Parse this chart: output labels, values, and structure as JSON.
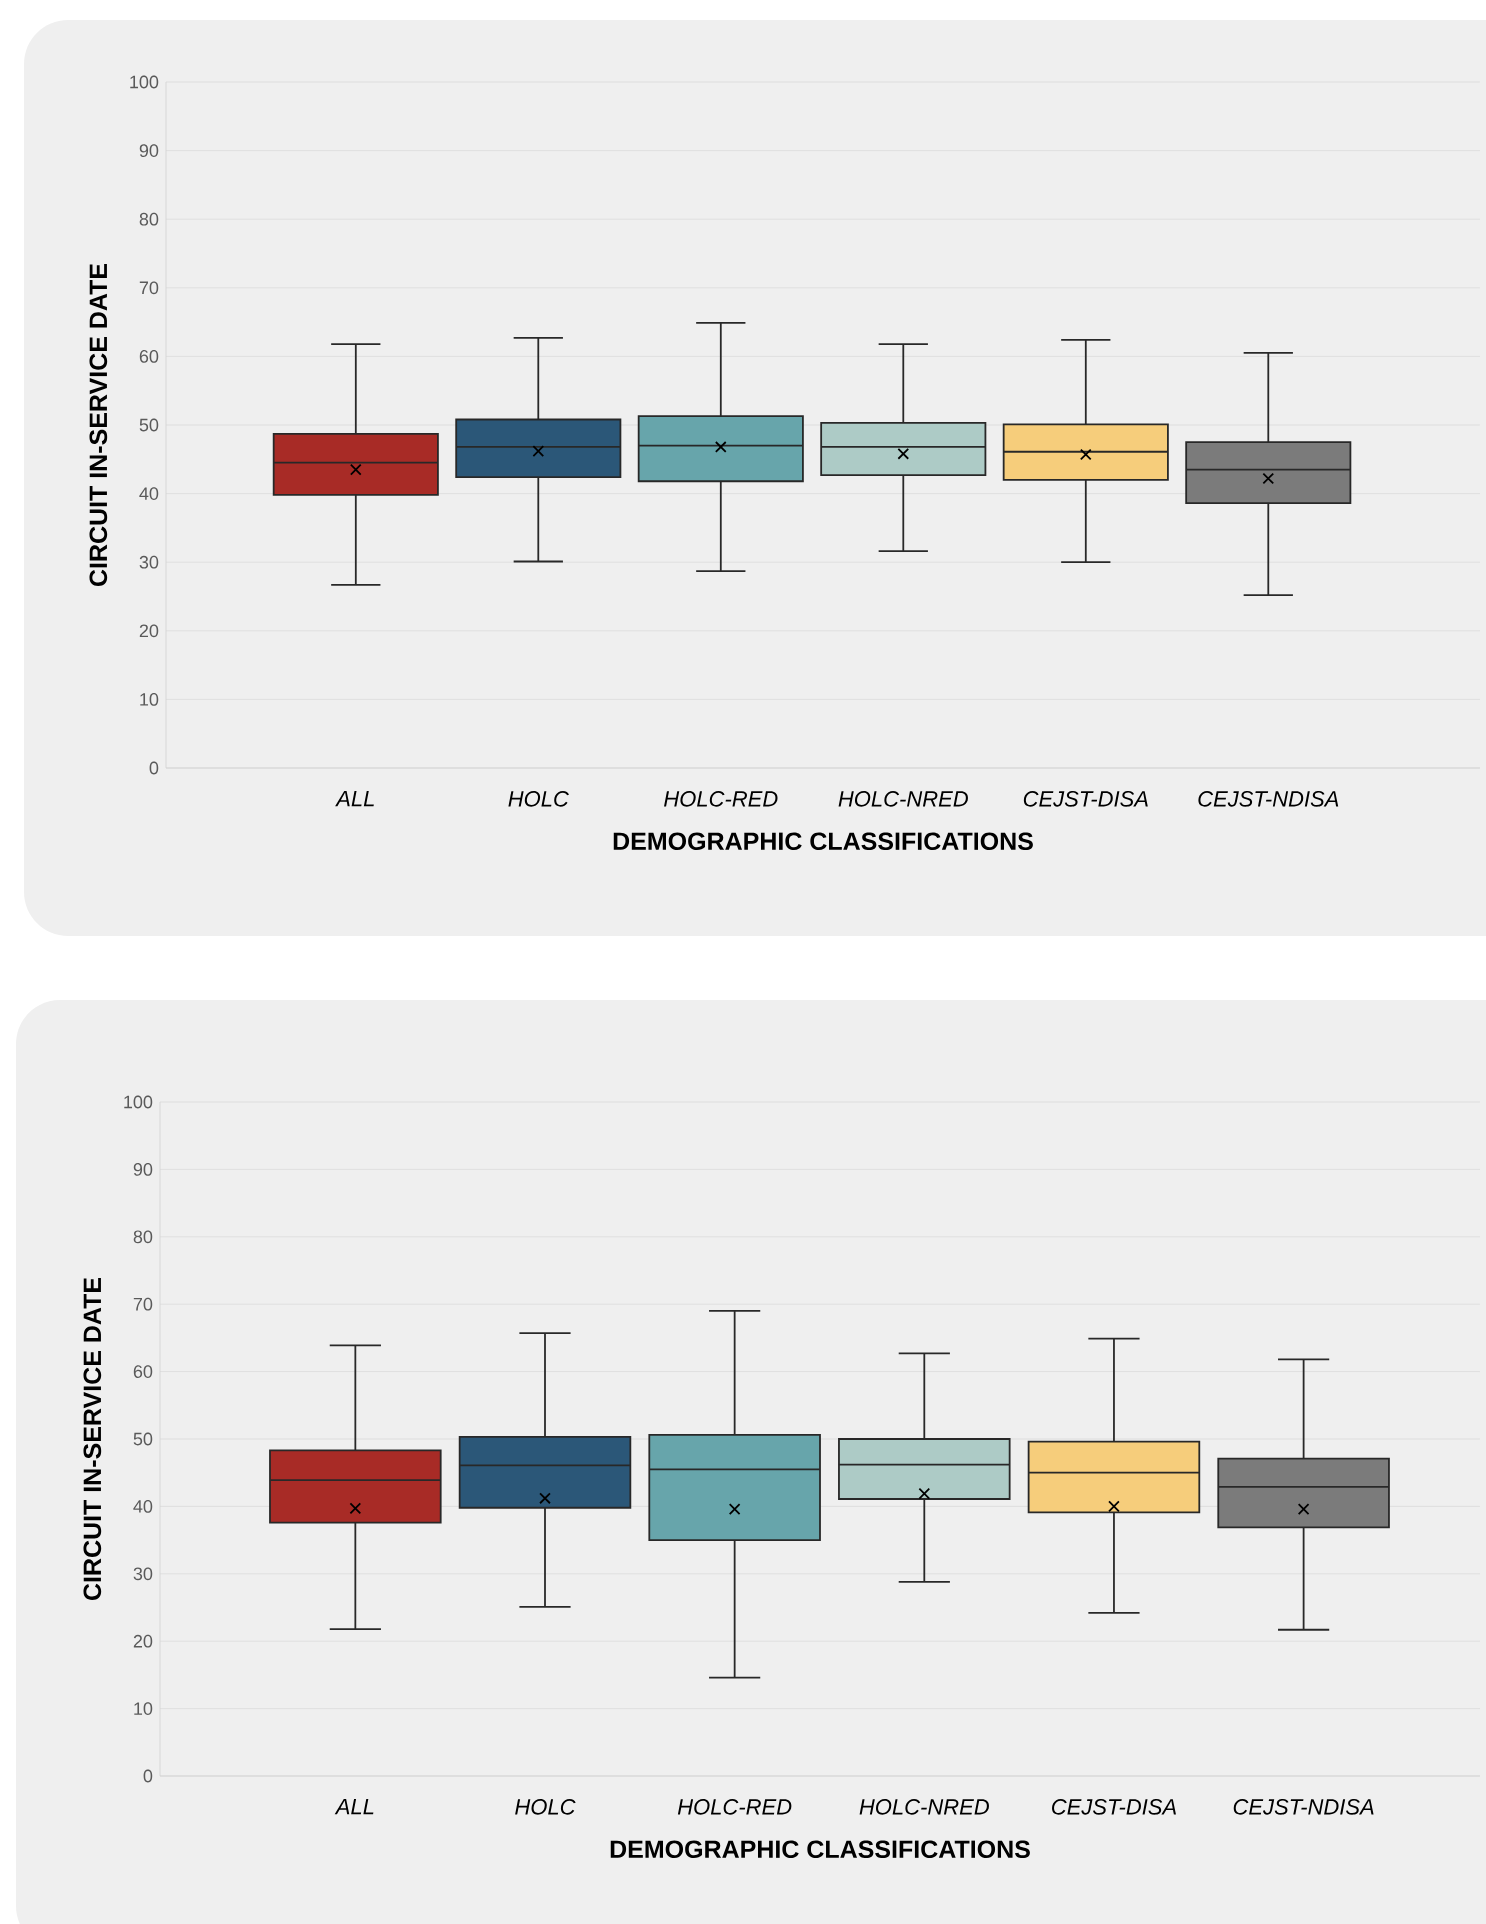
{
  "chart_data": [
    {
      "type": "box",
      "xlabel": "DEMOGRAPHIC CLASSIFICATIONS",
      "ylabel": "CIRCUIT IN-SERVICE DATE",
      "categories": [
        "ALL",
        "HOLC",
        "HOLC-RED",
        "HOLC-NRED",
        "CEJST-DISA",
        "CEJST-NDISA"
      ],
      "colors": [
        "#a82b26",
        "#2b5778",
        "#67a5ab",
        "#adcbc6",
        "#f6cd7b",
        "#7b7b7b"
      ],
      "boxes": [
        {
          "low": 26.7,
          "q1": 39.8,
          "median": 44.5,
          "q3": 48.7,
          "high": 61.8,
          "mean": 43.5
        },
        {
          "low": 30.1,
          "q1": 42.4,
          "median": 46.8,
          "q3": 50.8,
          "high": 62.7,
          "mean": 46.2
        },
        {
          "low": 28.7,
          "q1": 41.8,
          "median": 47.0,
          "q3": 51.3,
          "high": 64.9,
          "mean": 46.8
        },
        {
          "low": 31.6,
          "q1": 42.7,
          "median": 46.8,
          "q3": 50.3,
          "high": 61.8,
          "mean": 45.8
        },
        {
          "low": 30.0,
          "q1": 42.0,
          "median": 46.1,
          "q3": 50.1,
          "high": 62.4,
          "mean": 45.7
        },
        {
          "low": 25.2,
          "q1": 38.6,
          "median": 43.5,
          "q3": 47.5,
          "high": 60.5,
          "mean": 42.2
        }
      ],
      "ylim": [
        0,
        100
      ],
      "yticks": [
        0,
        10,
        20,
        30,
        40,
        50,
        60,
        70,
        80,
        90,
        100
      ],
      "grid": "y",
      "marker": "cross"
    },
    {
      "type": "box",
      "xlabel": "DEMOGRAPHIC CLASSIFICATIONS",
      "ylabel": "CIRCUIT IN-SERVICE DATE",
      "categories": [
        "ALL",
        "HOLC",
        "HOLC-RED",
        "HOLC-NRED",
        "CEJST-DISA",
        "CEJST-NDISA"
      ],
      "colors": [
        "#a82b26",
        "#2b5778",
        "#67a5ab",
        "#adcbc6",
        "#f6cd7b",
        "#7b7b7b"
      ],
      "boxes": [
        {
          "low": 21.8,
          "q1": 37.6,
          "median": 43.9,
          "q3": 48.3,
          "high": 63.9,
          "mean": 39.7
        },
        {
          "low": 25.1,
          "q1": 39.8,
          "median": 46.1,
          "q3": 50.3,
          "high": 65.7,
          "mean": 41.2
        },
        {
          "low": 14.6,
          "q1": 35.0,
          "median": 45.5,
          "q3": 50.6,
          "high": 69.0,
          "mean": 39.6
        },
        {
          "low": 28.8,
          "q1": 41.1,
          "median": 46.2,
          "q3": 50.0,
          "high": 62.7,
          "mean": 41.9
        },
        {
          "low": 24.2,
          "q1": 39.1,
          "median": 45.0,
          "q3": 49.6,
          "high": 64.9,
          "mean": 40.0
        },
        {
          "low": 21.7,
          "q1": 36.9,
          "median": 42.9,
          "q3": 47.1,
          "high": 61.8,
          "mean": 39.6
        }
      ],
      "ylim": [
        0,
        100
      ],
      "yticks": [
        0,
        10,
        20,
        30,
        40,
        50,
        60,
        70,
        80,
        90,
        100
      ],
      "grid": "y",
      "marker": "cross"
    }
  ]
}
